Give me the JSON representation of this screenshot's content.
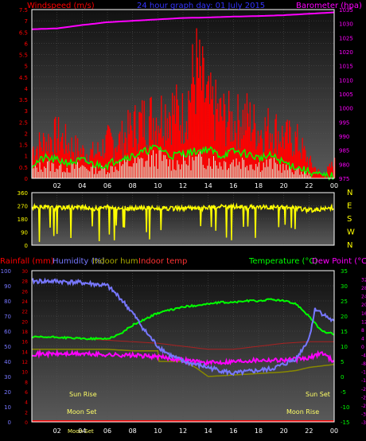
{
  "colors": {
    "wind": "#ff0000",
    "gust": "#ff0000",
    "avg": "#00ff00",
    "pressure": "#ff00ff",
    "winddir": "#ffff00",
    "humidity": "#7777ff",
    "temperature": "#00ff00",
    "dewpoint": "#ff00ff",
    "indoor_hum": "#888800",
    "indoor_temp": "#aa2222",
    "rain": "#ff0000",
    "axis": "#ffffff",
    "grid": "#555555"
  },
  "chart_data": [
    {
      "type": "bar",
      "title": "24 hour graph day: 01 July 2015",
      "ylabel": "Windspeed (m/s)",
      "y2label": "Barometer (hpa)",
      "ylim": [
        0,
        7.5
      ],
      "y2lim": [
        975,
        1035
      ],
      "yticks": [
        "0",
        "0.5",
        "1",
        "1.5",
        "2",
        "2.5",
        "3",
        "3.5",
        "4",
        "4.5",
        "5",
        "5.5",
        "6",
        "6.5",
        "7",
        "7.5"
      ],
      "y2ticks": [
        "975",
        "980",
        "985",
        "990",
        "995",
        "1000",
        "1005",
        "1010",
        "1015",
        "1020",
        "1025",
        "1030",
        "1035"
      ],
      "xticks": [
        "02",
        "04",
        "06",
        "08",
        "10",
        "12",
        "14",
        "16",
        "18",
        "20",
        "22",
        "00"
      ],
      "series": [
        {
          "name": "Wind gust",
          "type": "bar",
          "hours": [
            0,
            1,
            2,
            3,
            4,
            5,
            6,
            7,
            8,
            9,
            10,
            11,
            12,
            13,
            14,
            15,
            16,
            17,
            18,
            19,
            20,
            21,
            22,
            23,
            24
          ],
          "values": [
            1.8,
            2.2,
            2.6,
            2.0,
            1.6,
            1.5,
            2.2,
            2.3,
            3.1,
            3.6,
            3.8,
            4.2,
            3.7,
            6.6,
            4.4,
            3.8,
            3.4,
            3.7,
            2.9,
            3.1,
            2.5,
            2.3,
            1.0,
            0.2,
            0.9
          ]
        },
        {
          "name": "Wind speed avg",
          "type": "line",
          "hours": [
            0,
            1,
            2,
            3,
            4,
            5,
            6,
            7,
            8,
            9,
            10,
            11,
            12,
            13,
            14,
            15,
            16,
            17,
            18,
            19,
            20,
            21,
            22,
            23,
            24
          ],
          "values": [
            0.6,
            0.9,
            0.8,
            0.7,
            0.8,
            0.6,
            0.6,
            0.9,
            1.0,
            1.2,
            1.4,
            1.0,
            1.1,
            1.2,
            1.3,
            1.0,
            1.2,
            1.1,
            0.9,
            1.0,
            0.7,
            0.5,
            0.3,
            0.1,
            0.1
          ]
        },
        {
          "name": "Barometer",
          "type": "line",
          "hours": [
            0,
            2,
            4,
            6,
            8,
            10,
            12,
            14,
            16,
            18,
            20,
            22,
            24
          ],
          "values": [
            1028,
            1028.3,
            1029.5,
            1030.5,
            1031,
            1031.5,
            1032,
            1032.2,
            1032.5,
            1032.7,
            1033,
            1033.5,
            1034
          ]
        }
      ]
    },
    {
      "type": "line",
      "title": "",
      "ylim": [
        0,
        360
      ],
      "yticks": [
        "0",
        "90",
        "180",
        "270",
        "360"
      ],
      "y2ticks": [
        "N",
        "W",
        "S",
        "E",
        "N"
      ],
      "series": [
        {
          "name": "Wind direction",
          "type": "line",
          "hours": [
            0,
            1,
            2,
            3,
            4,
            5,
            6,
            7,
            8,
            9,
            10,
            11,
            12,
            13,
            14,
            15,
            16,
            17,
            18,
            19,
            20,
            21,
            22,
            23,
            24
          ],
          "values": [
            260,
            260,
            255,
            262,
            258,
            250,
            260,
            255,
            250,
            258,
            252,
            250,
            255,
            250,
            258,
            262,
            265,
            260,
            262,
            260,
            262,
            255,
            240,
            245,
            260
          ]
        }
      ]
    },
    {
      "type": "line",
      "title": "",
      "labels": {
        "rainfall": "Rainfall (mm)",
        "humidity": "Humidity (%)",
        "indoor_hum": "Indoor hum",
        "indoor_temp": "Indoor temp",
        "temperature": "Temperature (°C)",
        "dewpoint": "Dew Point (°C)"
      },
      "humidity_ticks": [
        "0",
        "10",
        "20",
        "30",
        "40",
        "50",
        "60",
        "70",
        "80",
        "90",
        "100"
      ],
      "rain_ticks": [
        "0",
        "2",
        "4",
        "6",
        "8",
        "10",
        "12",
        "14",
        "16",
        "18",
        "20",
        "22",
        "24",
        "26",
        "28",
        "30"
      ],
      "temp_ticks": [
        "-15",
        "-10",
        "-5",
        "0",
        "5",
        "10",
        "15",
        "20",
        "25",
        "30",
        "35"
      ],
      "dew_ticks": [
        "-36",
        "-34",
        "-32",
        "-30",
        "-28",
        "-26",
        "-24",
        "-22",
        "-20",
        "-18",
        "-16",
        "-14",
        "-12",
        "-10",
        "-8",
        "-6",
        "-4",
        "-2",
        "0",
        "2",
        "4",
        "6",
        "8",
        "10",
        "12",
        "14",
        "16",
        "18",
        "20",
        "22",
        "24",
        "26",
        "28",
        "30",
        "32",
        "34"
      ],
      "xticks": [
        "02",
        "04",
        "06",
        "08",
        "10",
        "12",
        "14",
        "16",
        "18",
        "20",
        "22",
        "00"
      ],
      "annotations": [
        "Sun Rise",
        "Moon Set",
        "Sun Set",
        "Moon Rise",
        "Moon Set"
      ],
      "series": [
        {
          "name": "Humidity",
          "type": "line",
          "hours": [
            0,
            2,
            4,
            6,
            7,
            8,
            9,
            10,
            11,
            12,
            13,
            14,
            15,
            16,
            17,
            18,
            19,
            20,
            21,
            22,
            22.5,
            23,
            24
          ],
          "values": [
            93,
            93,
            92,
            90,
            82,
            72,
            60,
            50,
            44,
            40,
            38,
            36,
            34,
            32,
            33,
            34,
            35,
            38,
            42,
            55,
            75,
            72,
            66
          ]
        },
        {
          "name": "Temperature",
          "type": "line",
          "hours": [
            0,
            2,
            4,
            6,
            7,
            8,
            9,
            10,
            11,
            12,
            13,
            14,
            15,
            16,
            17,
            18,
            19,
            20,
            21,
            22,
            23,
            24
          ],
          "values": [
            13,
            13,
            12.5,
            12.5,
            14,
            17,
            19,
            21,
            22,
            23,
            23.5,
            24,
            24.5,
            24.5,
            25,
            25,
            25.5,
            25,
            24,
            20,
            15,
            14
          ]
        },
        {
          "name": "Dew Point",
          "type": "line",
          "hours": [
            0,
            2,
            4,
            6,
            8,
            10,
            12,
            14,
            16,
            18,
            20,
            22,
            23,
            24
          ],
          "values": [
            7.5,
            7.5,
            7.5,
            7.2,
            7,
            6.5,
            5.5,
            4.5,
            5,
            5.5,
            5.5,
            6,
            8,
            5
          ]
        },
        {
          "name": "Indoor hum",
          "type": "line",
          "hours": [
            0,
            2,
            4,
            6,
            8,
            10,
            10.1,
            12,
            13,
            14,
            16,
            18,
            20,
            21,
            22,
            24
          ],
          "values": [
            48,
            48,
            48,
            48,
            47,
            47,
            40,
            40,
            36,
            30,
            31,
            32,
            33,
            34,
            36,
            38
          ]
        },
        {
          "name": "Indoor temp",
          "type": "line",
          "hours": [
            0,
            2,
            4,
            6,
            8,
            10,
            12,
            14,
            16,
            18,
            20,
            22,
            24
          ],
          "values": [
            56,
            56,
            55,
            54,
            53,
            52,
            50,
            48,
            48,
            50,
            52,
            53,
            53
          ]
        },
        {
          "name": "Rainfall",
          "type": "line",
          "hours": [
            0,
            24
          ],
          "values": [
            0,
            0
          ]
        }
      ]
    }
  ]
}
